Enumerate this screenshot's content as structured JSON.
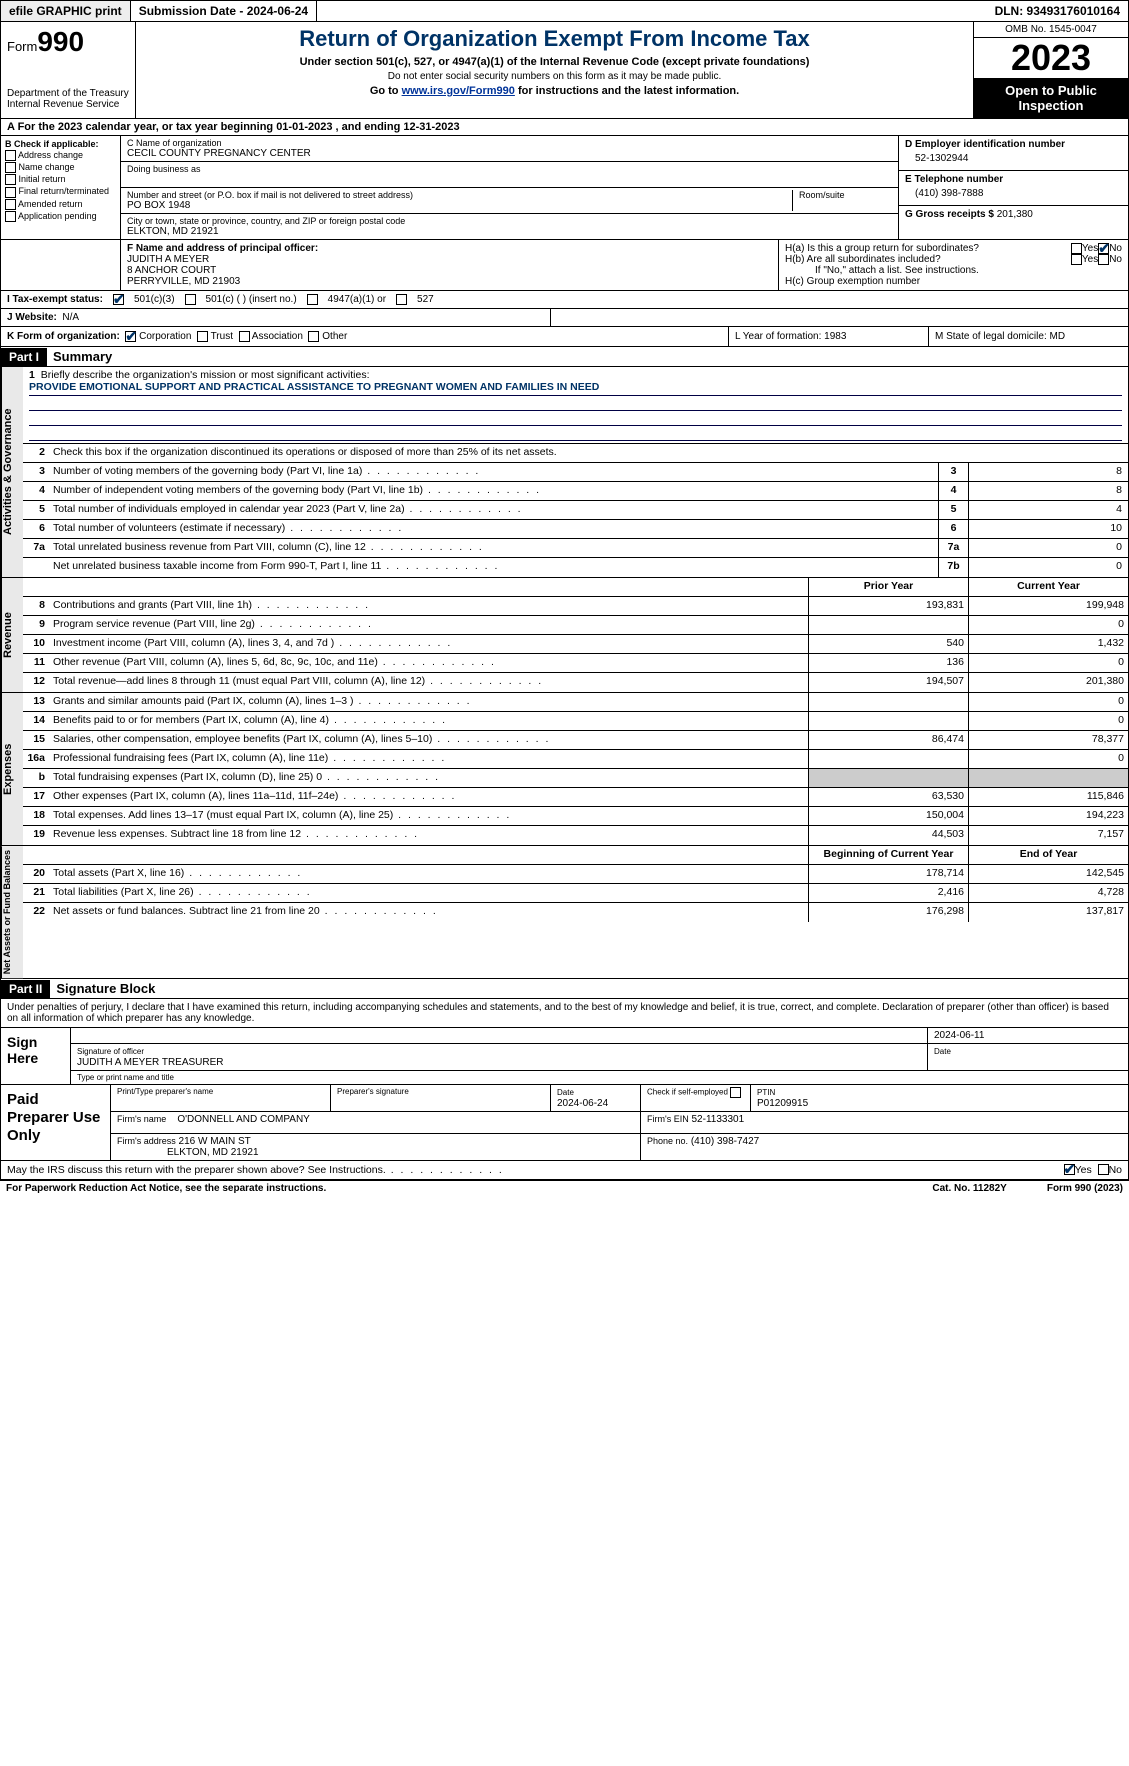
{
  "topbar": {
    "efile": "efile GRAPHIC print",
    "submission": "Submission Date - 2024-06-24",
    "dln": "DLN: 93493176010164"
  },
  "header": {
    "form_word": "Form",
    "form_num": "990",
    "dept": "Department of the Treasury Internal Revenue Service",
    "title": "Return of Organization Exempt From Income Tax",
    "sub1": "Under section 501(c), 527, or 4947(a)(1) of the Internal Revenue Code (except private foundations)",
    "sub2": "Do not enter social security numbers on this form as it may be made public.",
    "sub3_pre": "Go to ",
    "sub3_link": "www.irs.gov/Form990",
    "sub3_post": " for instructions and the latest information.",
    "omb": "OMB No. 1545-0047",
    "year": "2023",
    "open": "Open to Public Inspection"
  },
  "rowA": "A For the 2023 calendar year, or tax year beginning 01-01-2023   , and ending 12-31-2023",
  "boxB": {
    "label": "B Check if applicable:",
    "opts": [
      "Address change",
      "Name change",
      "Initial return",
      "Final return/terminated",
      "Amended return",
      "Application pending"
    ]
  },
  "boxC": {
    "name_lbl": "C Name of organization",
    "name": "CECIL COUNTY PREGNANCY CENTER",
    "dba_lbl": "Doing business as",
    "addr_lbl": "Number and street (or P.O. box if mail is not delivered to street address)",
    "room_lbl": "Room/suite",
    "addr": "PO BOX 1948",
    "city_lbl": "City or town, state or province, country, and ZIP or foreign postal code",
    "city": "ELKTON, MD  21921"
  },
  "boxD": {
    "lbl": "D Employer identification number",
    "val": "52-1302944"
  },
  "boxE": {
    "lbl": "E Telephone number",
    "val": "(410) 398-7888"
  },
  "boxG": {
    "lbl": "G Gross receipts $",
    "val": "201,380"
  },
  "boxF": {
    "lbl": "F  Name and address of principal officer:",
    "name": "JUDITH A MEYER",
    "addr1": "8 ANCHOR COURT",
    "addr2": "PERRYVILLE, MD  21903"
  },
  "boxH": {
    "a": "H(a)  Is this a group return for subordinates?",
    "b": "H(b)  Are all subordinates included?",
    "note": "If \"No,\" attach a list. See instructions.",
    "c": "H(c)  Group exemption number"
  },
  "boxI": {
    "lbl": "I   Tax-exempt status:",
    "o1": "501(c)(3)",
    "o2": "501(c) (  ) (insert no.)",
    "o3": "4947(a)(1) or",
    "o4": "527"
  },
  "boxJ": {
    "lbl": "J   Website:",
    "val": "N/A"
  },
  "boxK": {
    "lbl": "K Form of organization:",
    "o1": "Corporation",
    "o2": "Trust",
    "o3": "Association",
    "o4": "Other"
  },
  "boxL": "L Year of formation: 1983",
  "boxM": "M State of legal domicile: MD",
  "part1": {
    "hdr": "Part I",
    "title": "Summary"
  },
  "mission": {
    "q": "Briefly describe the organization's mission or most significant activities:",
    "text": "PROVIDE EMOTIONAL SUPPORT AND PRACTICAL ASSISTANCE TO PREGNANT WOMEN AND FAMILIES IN NEED"
  },
  "line2": "Check this box      if the organization discontinued its operations or disposed of more than 25% of its net assets.",
  "gov_lines": [
    {
      "n": "3",
      "t": "Number of voting members of the governing body (Part VI, line 1a)",
      "b": "3",
      "v": "8"
    },
    {
      "n": "4",
      "t": "Number of independent voting members of the governing body (Part VI, line 1b)",
      "b": "4",
      "v": "8"
    },
    {
      "n": "5",
      "t": "Total number of individuals employed in calendar year 2023 (Part V, line 2a)",
      "b": "5",
      "v": "4"
    },
    {
      "n": "6",
      "t": "Total number of volunteers (estimate if necessary)",
      "b": "6",
      "v": "10"
    },
    {
      "n": "7a",
      "t": "Total unrelated business revenue from Part VIII, column (C), line 12",
      "b": "7a",
      "v": "0"
    },
    {
      "n": "",
      "t": "Net unrelated business taxable income from Form 990-T, Part I, line 11",
      "b": "7b",
      "v": "0"
    }
  ],
  "rev_hdr": {
    "py": "Prior Year",
    "cy": "Current Year"
  },
  "rev_lines": [
    {
      "n": "8",
      "t": "Contributions and grants (Part VIII, line 1h)",
      "p": "193,831",
      "c": "199,948"
    },
    {
      "n": "9",
      "t": "Program service revenue (Part VIII, line 2g)",
      "p": "",
      "c": "0"
    },
    {
      "n": "10",
      "t": "Investment income (Part VIII, column (A), lines 3, 4, and 7d )",
      "p": "540",
      "c": "1,432"
    },
    {
      "n": "11",
      "t": "Other revenue (Part VIII, column (A), lines 5, 6d, 8c, 9c, 10c, and 11e)",
      "p": "136",
      "c": "0"
    },
    {
      "n": "12",
      "t": "Total revenue—add lines 8 through 11 (must equal Part VIII, column (A), line 12)",
      "p": "194,507",
      "c": "201,380"
    }
  ],
  "exp_lines": [
    {
      "n": "13",
      "t": "Grants and similar amounts paid (Part IX, column (A), lines 1–3 )",
      "p": "",
      "c": "0"
    },
    {
      "n": "14",
      "t": "Benefits paid to or for members (Part IX, column (A), line 4)",
      "p": "",
      "c": "0"
    },
    {
      "n": "15",
      "t": "Salaries, other compensation, employee benefits (Part IX, column (A), lines 5–10)",
      "p": "86,474",
      "c": "78,377"
    },
    {
      "n": "16a",
      "t": "Professional fundraising fees (Part IX, column (A), line 11e)",
      "p": "",
      "c": "0"
    },
    {
      "n": "b",
      "t": "Total fundraising expenses (Part IX, column (D), line 25) 0",
      "p": "GREY",
      "c": "GREY"
    },
    {
      "n": "17",
      "t": "Other expenses (Part IX, column (A), lines 11a–11d, 11f–24e)",
      "p": "63,530",
      "c": "115,846"
    },
    {
      "n": "18",
      "t": "Total expenses. Add lines 13–17 (must equal Part IX, column (A), line 25)",
      "p": "150,004",
      "c": "194,223"
    },
    {
      "n": "19",
      "t": "Revenue less expenses. Subtract line 18 from line 12",
      "p": "44,503",
      "c": "7,157"
    }
  ],
  "na_hdr": {
    "b": "Beginning of Current Year",
    "e": "End of Year"
  },
  "na_lines": [
    {
      "n": "20",
      "t": "Total assets (Part X, line 16)",
      "p": "178,714",
      "c": "142,545"
    },
    {
      "n": "21",
      "t": "Total liabilities (Part X, line 26)",
      "p": "2,416",
      "c": "4,728"
    },
    {
      "n": "22",
      "t": "Net assets or fund balances. Subtract line 21 from line 20",
      "p": "176,298",
      "c": "137,817"
    }
  ],
  "part2": {
    "hdr": "Part II",
    "title": "Signature Block"
  },
  "sig_intro": "Under penalties of perjury, I declare that I have examined this return, including accompanying schedules and statements, and to the best of my knowledge and belief, it is true, correct, and complete. Declaration of preparer (other than officer) is based on all information of which preparer has any knowledge.",
  "sign": {
    "here": "Sign Here",
    "sig_lbl": "Signature of officer",
    "date_lbl": "Date",
    "date": "2024-06-11",
    "name": "JUDITH A MEYER  TREASURER",
    "name_lbl": "Type or print name and title"
  },
  "paid": {
    "lbl": "Paid Preparer Use Only",
    "h1": "Print/Type preparer's name",
    "h2": "Preparer's signature",
    "h3": "Date",
    "h3v": "2024-06-24",
    "h4": "Check        if self-employed",
    "h5": "PTIN",
    "h5v": "P01209915",
    "firm_lbl": "Firm's name",
    "firm": "O'DONNELL AND COMPANY",
    "ein_lbl": "Firm's EIN",
    "ein": "52-1133301",
    "addr_lbl": "Firm's address",
    "addr1": "216 W MAIN ST",
    "addr2": "ELKTON, MD  21921",
    "phone_lbl": "Phone no.",
    "phone": "(410) 398-7427"
  },
  "irs_q": "May the IRS discuss this return with the preparer shown above? See Instructions.",
  "footer": {
    "f1": "For Paperwork Reduction Act Notice, see the separate instructions.",
    "f2": "Cat. No. 11282Y",
    "f3": "Form 990 (2023)"
  },
  "vtabs": {
    "gov": "Activities & Governance",
    "rev": "Revenue",
    "exp": "Expenses",
    "na": "Net Assets or Fund Balances"
  }
}
